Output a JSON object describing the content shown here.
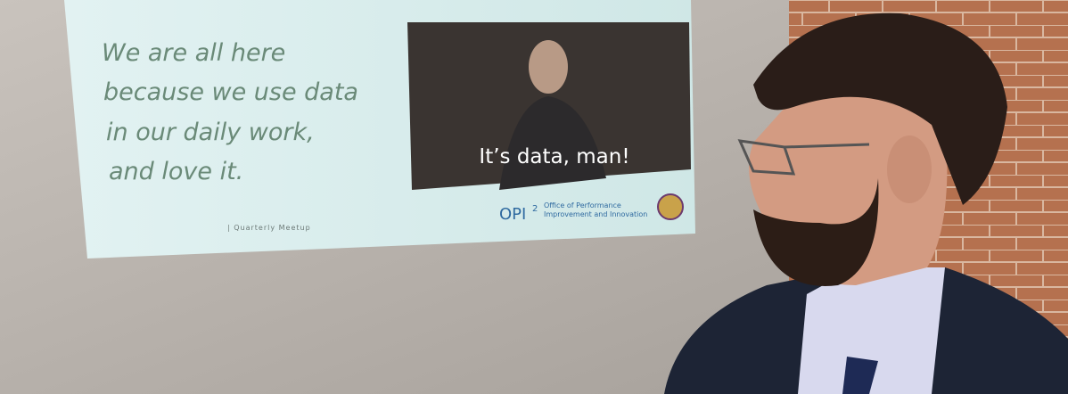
{
  "slide": {
    "lines": [
      "We are all here",
      "because we use data",
      "in our daily work,",
      "and love it."
    ],
    "video_caption": "It’s data, man!",
    "logo": {
      "mark": "OPI",
      "superscript": "2",
      "org_lines": [
        "Office of Performance",
        "Improvement and Innovation"
      ]
    },
    "footer": "| Quarterly Meetup"
  }
}
